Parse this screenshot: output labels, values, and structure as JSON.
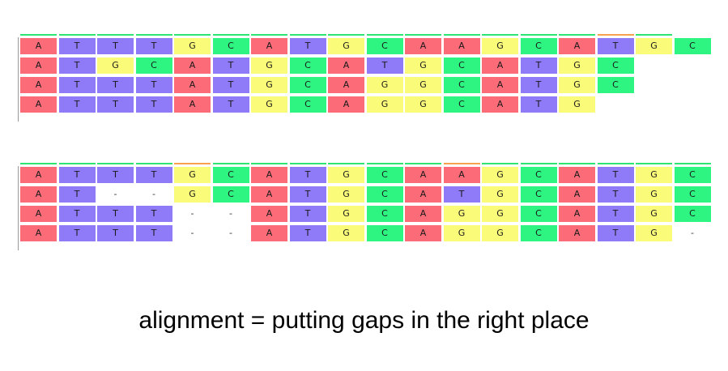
{
  "colors": {
    "A": "#fb6b78",
    "T": "#8f7af7",
    "G": "#fbfb7a",
    "C": "#2ef582",
    "consensus_green": "#2ee573",
    "consensus_orange": "#f7a04e",
    "gap": "#ffffff"
  },
  "unaligned": {
    "consensus": [
      "G",
      "G",
      "G",
      "G",
      "G",
      "G",
      "G",
      "G",
      "G",
      "G",
      "G",
      "G",
      "G",
      "G",
      "G",
      "O",
      "G"
    ],
    "rows": [
      [
        "A",
        "T",
        "T",
        "T",
        "G",
        "C",
        "A",
        "T",
        "G",
        "C",
        "A",
        "A",
        "G",
        "C",
        "A",
        "T",
        "G",
        "C"
      ],
      [
        "A",
        "T",
        "G",
        "C",
        "A",
        "T",
        "G",
        "C",
        "A",
        "T",
        "G",
        "C",
        "A",
        "T",
        "G",
        "C"
      ],
      [
        "A",
        "T",
        "T",
        "T",
        "A",
        "T",
        "G",
        "C",
        "A",
        "G",
        "G",
        "C",
        "A",
        "T",
        "G",
        "C"
      ],
      [
        "A",
        "T",
        "T",
        "T",
        "A",
        "T",
        "G",
        "C",
        "A",
        "G",
        "G",
        "C",
        "A",
        "T",
        "G"
      ]
    ]
  },
  "aligned": {
    "consensus": [
      "G",
      "G",
      "G",
      "G",
      "O",
      "G",
      "G",
      "G",
      "G",
      "G",
      "G",
      "O",
      "G",
      "G",
      "G",
      "G",
      "G",
      "G"
    ],
    "rows": [
      [
        "A",
        "T",
        "T",
        "T",
        "G",
        "C",
        "A",
        "T",
        "G",
        "C",
        "A",
        "A",
        "G",
        "C",
        "A",
        "T",
        "G",
        "C"
      ],
      [
        "A",
        "T",
        "-",
        "-",
        "G",
        "C",
        "A",
        "T",
        "G",
        "C",
        "A",
        "T",
        "G",
        "C",
        "A",
        "T",
        "G",
        "C"
      ],
      [
        "A",
        "T",
        "T",
        "T",
        "-",
        "-",
        "A",
        "T",
        "G",
        "C",
        "A",
        "G",
        "G",
        "C",
        "A",
        "T",
        "G",
        "C"
      ],
      [
        "A",
        "T",
        "T",
        "T",
        "-",
        "-",
        "A",
        "T",
        "G",
        "C",
        "A",
        "G",
        "G",
        "C",
        "A",
        "T",
        "G",
        "-"
      ]
    ]
  },
  "caption": "alignment = putting gaps in the right place"
}
